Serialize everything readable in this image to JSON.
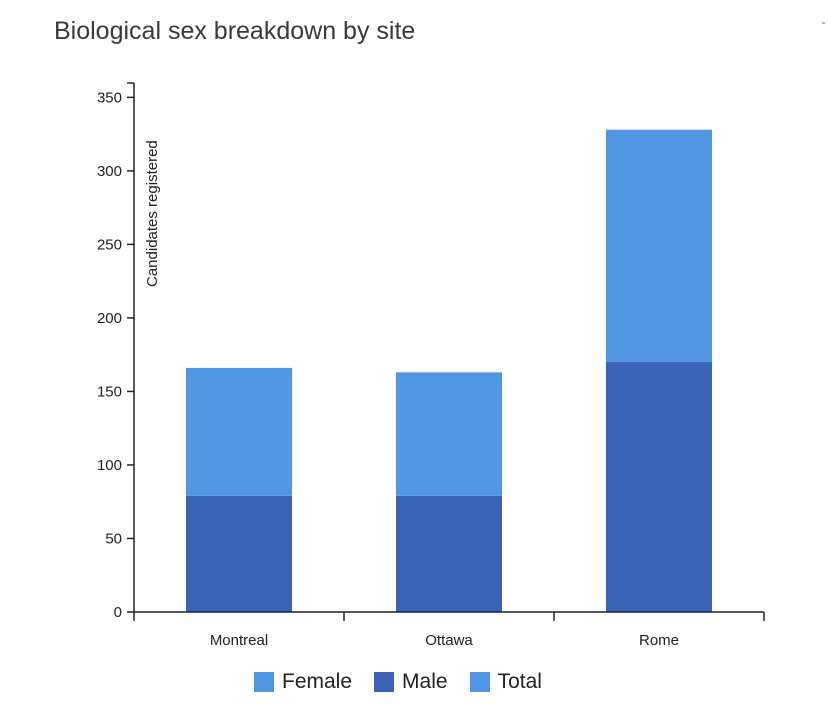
{
  "chart_data": {
    "type": "bar",
    "stacked": true,
    "title": "Biological sex breakdown by site",
    "xlabel": "",
    "ylabel": "Candidates registered",
    "categories": [
      "Montreal",
      "Ottawa",
      "Rome"
    ],
    "ylim": [
      0,
      360
    ],
    "yticks": [
      0,
      50,
      100,
      150,
      200,
      250,
      300,
      350
    ],
    "grid": false,
    "legend_position": "bottom",
    "series": [
      {
        "name": "Male",
        "values": [
          79,
          79,
          170
        ],
        "color": "#3a62b5"
      },
      {
        "name": "Female",
        "values": [
          87,
          84,
          158
        ],
        "color": "#4f97e3"
      },
      {
        "name": "Total",
        "values": [
          166,
          163,
          328
        ],
        "color": "#4f97e3"
      }
    ]
  },
  "legend": {
    "items": [
      {
        "label": "Female",
        "color": "#4f97e3"
      },
      {
        "label": "Male",
        "color": "#3a62b5"
      },
      {
        "label": "Total",
        "color": "#4f97e3"
      }
    ]
  }
}
